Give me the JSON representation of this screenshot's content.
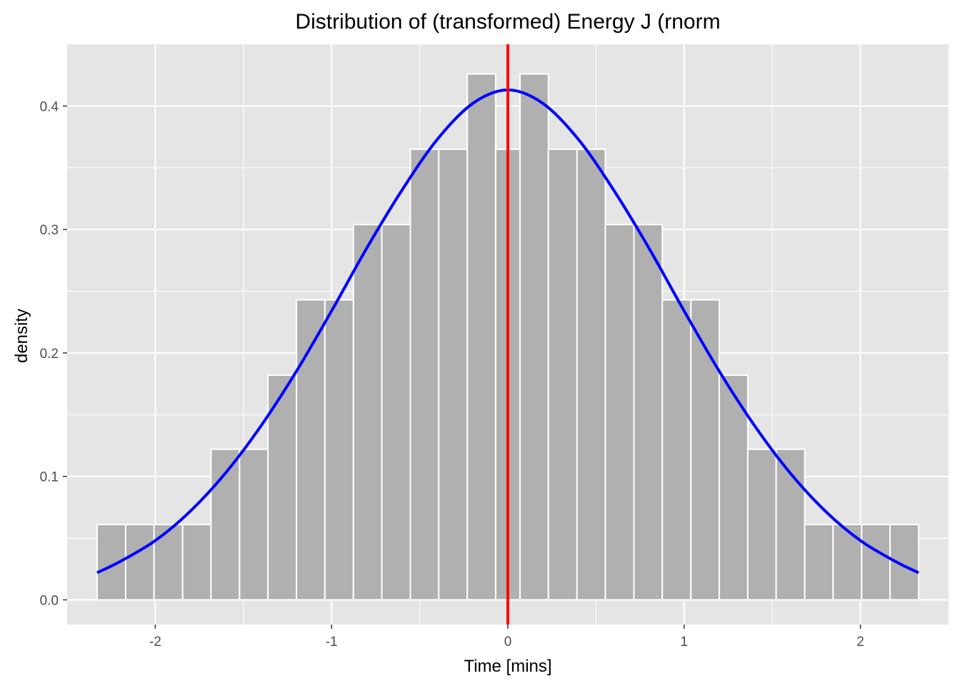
{
  "chart_data": {
    "type": "bar",
    "title": "Distribution of (transformed) Energy J (rnorm",
    "xlabel": "Time [mins]",
    "ylabel": "density",
    "xlim": [
      -2.5,
      2.5
    ],
    "ylim": [
      -0.02,
      0.45
    ],
    "x_ticks": [
      -2,
      -1,
      0,
      1,
      2
    ],
    "x_tick_labels": [
      "-2",
      "-1",
      "0",
      "1",
      "2"
    ],
    "y_ticks": [
      0.0,
      0.1,
      0.2,
      0.3,
      0.4
    ],
    "y_tick_labels": [
      "0.0",
      "0.1",
      "0.2",
      "0.3",
      "0.4"
    ],
    "grid": true,
    "legend": "none",
    "histogram": {
      "bin_edges": [
        -2.33,
        -2.168,
        -2.007,
        -1.845,
        -1.684,
        -1.522,
        -1.361,
        -1.199,
        -1.038,
        -0.876,
        -0.715,
        -0.553,
        -0.392,
        -0.23,
        -0.069,
        0.069,
        0.23,
        0.392,
        0.553,
        0.715,
        0.876,
        1.038,
        1.199,
        1.361,
        1.522,
        1.684,
        1.845,
        2.007,
        2.168,
        2.33
      ],
      "densities": [
        0.061,
        0.061,
        0.061,
        0.061,
        0.122,
        0.122,
        0.182,
        0.243,
        0.243,
        0.304,
        0.304,
        0.365,
        0.365,
        0.426,
        0.365,
        0.426,
        0.365,
        0.365,
        0.304,
        0.304,
        0.243,
        0.243,
        0.182,
        0.122,
        0.122,
        0.061,
        0.061,
        0.061,
        0.061
      ],
      "fill_color": "#b0b0b0",
      "edge_color": "#ffffff"
    },
    "curve": {
      "x": [
        -2.33,
        -2.2,
        -2.0,
        -1.8,
        -1.6,
        -1.4,
        -1.2,
        -1.0,
        -0.8,
        -0.6,
        -0.4,
        -0.2,
        0.0,
        0.2,
        0.4,
        0.6,
        0.8,
        1.0,
        1.2,
        1.4,
        1.6,
        1.8,
        2.0,
        2.2,
        2.33
      ],
      "y": [
        0.022,
        0.031,
        0.048,
        0.072,
        0.103,
        0.141,
        0.185,
        0.234,
        0.285,
        0.332,
        0.373,
        0.402,
        0.413,
        0.402,
        0.373,
        0.332,
        0.285,
        0.234,
        0.185,
        0.141,
        0.103,
        0.072,
        0.048,
        0.031,
        0.022
      ],
      "color": "#0000ff"
    },
    "vline": {
      "x": 0,
      "color": "#ff0000"
    },
    "panel_color": "#e5e5e5",
    "grid_color": "#ffffff"
  }
}
